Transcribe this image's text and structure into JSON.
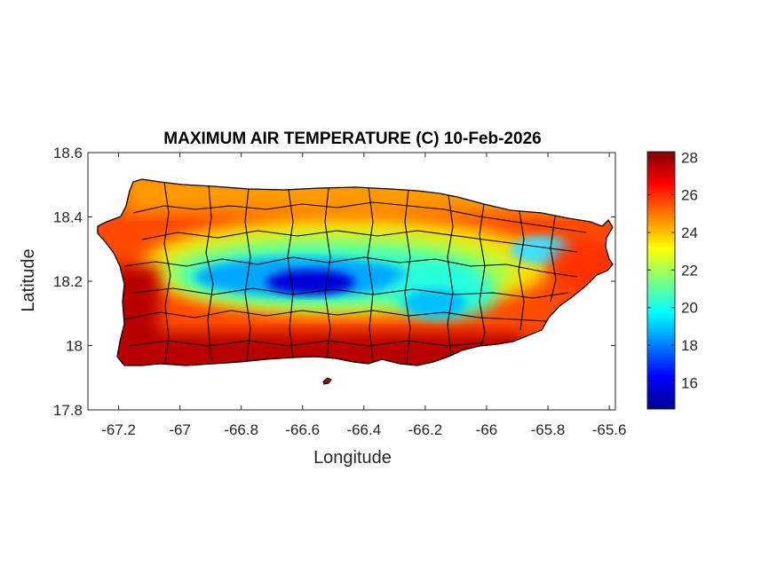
{
  "map": {
    "title": "MAXIMUM AIR TEMPERATURE (C) 10-Feb-2026",
    "xlabel": "Longitude",
    "ylabel": "Latitude",
    "xlim": [
      -67.3,
      -65.58
    ],
    "ylim": [
      17.8,
      18.6
    ],
    "xticks": [
      -67.2,
      -67,
      -66.8,
      -66.6,
      -66.4,
      -66.2,
      -66,
      -65.8,
      -65.6
    ],
    "xtick_labels": [
      "-67.2",
      "-67",
      "-66.8",
      "-66.6",
      "-66.4",
      "-66.2",
      "-66",
      "-65.8",
      "-65.6"
    ],
    "yticks": [
      17.8,
      18,
      18.2,
      18.4,
      18.6
    ],
    "ytick_labels": [
      "17.8",
      "18",
      "18.2",
      "18.4",
      "18.6"
    ],
    "colorbar": {
      "min": 14.6,
      "max": 28.3,
      "ticks": [
        16,
        18,
        20,
        22,
        24,
        26,
        28
      ],
      "tick_labels": [
        "16",
        "18",
        "20",
        "22",
        "24",
        "26",
        "28"
      ],
      "colormap": "jet"
    },
    "colors": {
      "boundary": "#000000",
      "axes": "#262626",
      "background": "#ffffff"
    }
  }
}
